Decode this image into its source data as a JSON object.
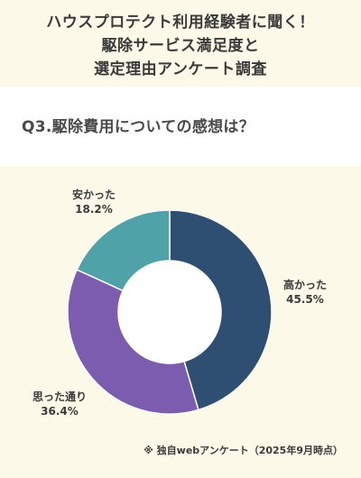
{
  "header": {
    "title_lines": [
      "ハウスプロテクト利用経験者に聞く！",
      "駆除サービス満足度と",
      "選定理由アンケート調査"
    ]
  },
  "question": "Q3.駆除費用についての感想は？",
  "chart_data": {
    "type": "pie",
    "donut": true,
    "slices": [
      {
        "label": "高かった",
        "value": 45.5,
        "display": "45.5%",
        "color": "#2e4e72"
      },
      {
        "label": "思った通り",
        "value": 36.4,
        "display": "36.4%",
        "color": "#7c5cae"
      },
      {
        "label": "安かった",
        "value": 18.2,
        "display": "18.2%",
        "color": "#4fa3a8"
      }
    ],
    "legend": "labels beside slices"
  },
  "footnote": "※ 独自webアンケート（2025年9月時点）"
}
